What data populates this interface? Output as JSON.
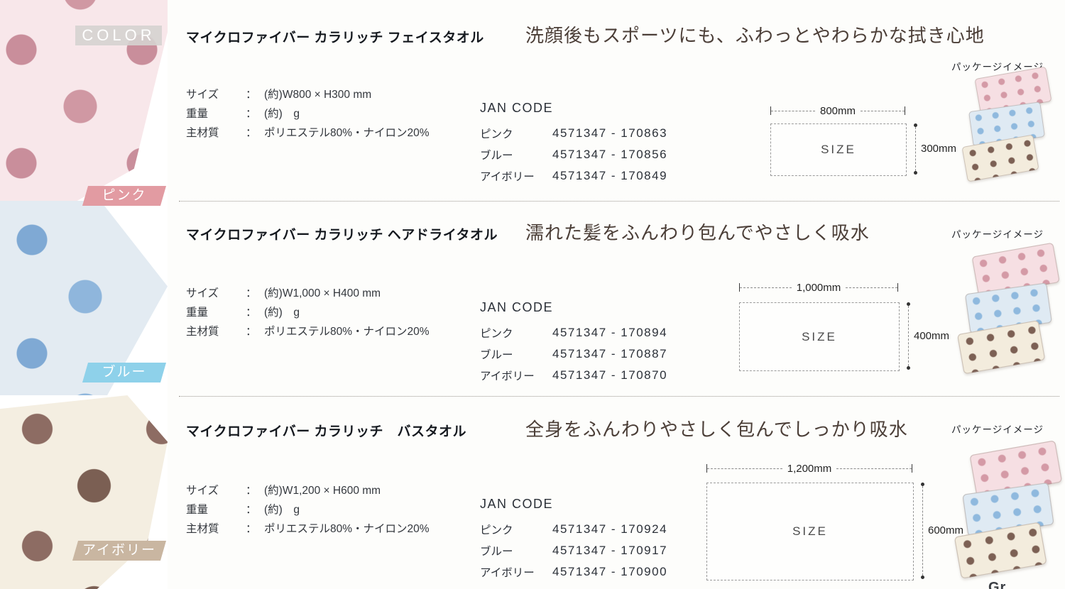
{
  "color_strip": {
    "header_label": "COLOR",
    "swatches": [
      {
        "label": "ピンク",
        "band_color": "#e29ba2",
        "towel_color": "#f8e7ea",
        "dot_color": "#d098a3"
      },
      {
        "label": "ブルー",
        "band_color": "#8ed1ea",
        "towel_color": "#e3ebf2",
        "dot_color": "#8fb6dc"
      },
      {
        "label": "アイボリー",
        "band_color": "#c9b6a1",
        "towel_color": "#f4eee1",
        "dot_color": "#7b5f53"
      }
    ]
  },
  "spec_separator": "：",
  "sections": [
    {
      "title": "マイクロファイバー カラリッチ フェイスタオル",
      "tagline": "洗顔後もスポーツにも、ふわっとやわらかな拭き心地",
      "package_label": "パッケージイメージ",
      "specs": [
        {
          "label": "サイズ",
          "value": "(約)W800 × H300 mm"
        },
        {
          "label": "重量",
          "value": "(約)　g"
        },
        {
          "label": "主材質",
          "value": "ポリエステル80%・ナイロン20%"
        }
      ],
      "jan_header": "JAN CODE",
      "jan_rows": [
        {
          "color": "ピンク",
          "code": "4571347 - 170863"
        },
        {
          "color": "ブルー",
          "code": "4571347 - 170856"
        },
        {
          "color": "アイボリー",
          "code": "4571347 - 170849"
        }
      ],
      "diagram": {
        "label": "SIZE",
        "width_label": "800mm",
        "height_label": "300mm"
      }
    },
    {
      "title": "マイクロファイバー カラリッチ ヘアドライタオル",
      "tagline": "濡れた髪をふんわり包んでやさしく吸水",
      "package_label": "パッケージイメージ",
      "specs": [
        {
          "label": "サイズ",
          "value": "(約)W1,000 × H400 mm"
        },
        {
          "label": "重量",
          "value": "(約)　g"
        },
        {
          "label": "主材質",
          "value": "ポリエステル80%・ナイロン20%"
        }
      ],
      "jan_header": "JAN CODE",
      "jan_rows": [
        {
          "color": "ピンク",
          "code": "4571347 - 170894"
        },
        {
          "color": "ブルー",
          "code": "4571347 - 170887"
        },
        {
          "color": "アイボリー",
          "code": "4571347 - 170870"
        }
      ],
      "diagram": {
        "label": "SIZE",
        "width_label": "1,000mm",
        "height_label": "400mm"
      }
    },
    {
      "title": "マイクロファイバー カラリッチ　バスタオル",
      "tagline": "全身をふんわりやさしく包んでしっかり吸水",
      "package_label": "パッケージイメージ",
      "specs": [
        {
          "label": "サイズ",
          "value": "(約)W1,200 × H600 mm"
        },
        {
          "label": "重量",
          "value": "(約)　g"
        },
        {
          "label": "主材質",
          "value": "ポリエステル80%・ナイロン20%"
        }
      ],
      "jan_header": "JAN CODE",
      "jan_rows": [
        {
          "color": "ピンク",
          "code": "4571347 - 170924"
        },
        {
          "color": "ブルー",
          "code": "4571347 - 170917"
        },
        {
          "color": "アイボリー",
          "code": "4571347 - 170900"
        }
      ],
      "diagram": {
        "label": "SIZE",
        "width_label": "1,200mm",
        "height_label": "600mm"
      }
    }
  ],
  "corner_partial_text": "Gr"
}
